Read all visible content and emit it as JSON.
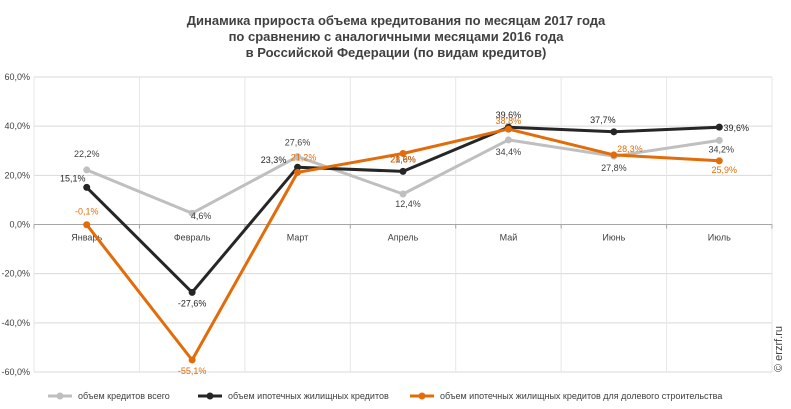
{
  "chart_data": {
    "type": "line",
    "title_lines": [
      "Динамика прироста объема кредитования по месяцам 2017 года",
      "по сравнению  с аналогичными месяцами 2016 года",
      "в Российской  Федерации (по видам кредитов)"
    ],
    "categories": [
      "Январь",
      "Февраль",
      "Март",
      "Апрель",
      "Май",
      "Июнь",
      "Июль"
    ],
    "y_ticks": [
      "60,0%",
      "40,0%",
      "20,0%",
      "0,0%",
      "-20,0%",
      "-40,0%",
      "-60,0%"
    ],
    "ylim": [
      -60,
      60
    ],
    "grid": "horizontal",
    "legend_position": "bottom",
    "series": [
      {
        "name": "объем кредитов  всего",
        "color": "#bfbfbf",
        "values": [
          22.2,
          4.6,
          27.6,
          12.4,
          34.4,
          27.8,
          34.2
        ],
        "labels": [
          "22,2%",
          "4,6%",
          "27,6%",
          "12,4%",
          "34,4%",
          "27,8%",
          "34,2%"
        ]
      },
      {
        "name": "объем ипотечных  жилищных  кредитов",
        "color": "#262626",
        "values": [
          15.1,
          -27.6,
          23.3,
          21.6,
          39.6,
          37.7,
          39.6
        ],
        "labels": [
          "15,1%",
          "-27,6%",
          "23,3%",
          "21,6%",
          "39,6%",
          "37,7%",
          "39,6%"
        ]
      },
      {
        "name": "объем ипотечных  жилищных  кредитов  для долевого  строительства",
        "color": "#e36c0a",
        "values": [
          -0.1,
          -55.1,
          21.2,
          28.9,
          38.8,
          28.3,
          25.9
        ],
        "labels": [
          "-0,1%",
          "-55,1%",
          "21,2%",
          "28,9%",
          "38,8%",
          "28,3%",
          "25,9%"
        ]
      }
    ]
  },
  "watermark": "© erzrf.ru"
}
